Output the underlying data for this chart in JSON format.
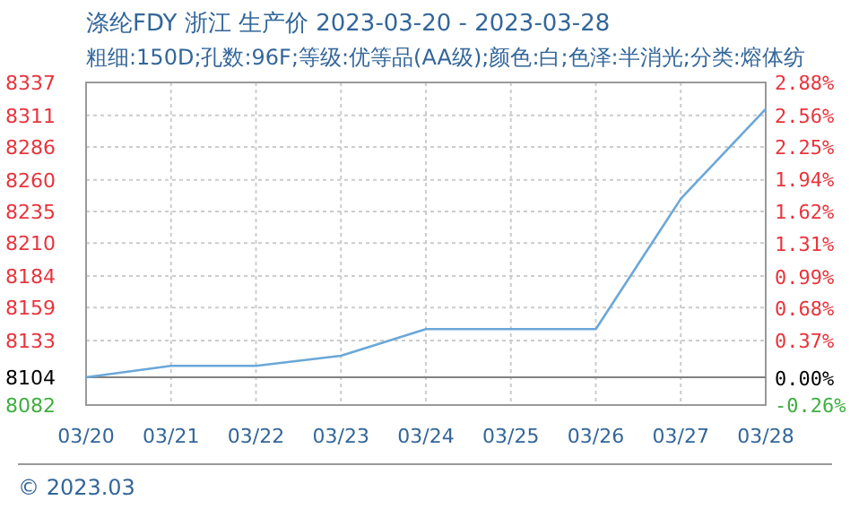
{
  "chart_data": {
    "type": "line",
    "title": "涤纶FDY 浙江 生产价 2023-03-20 - 2023-03-28",
    "subtitle": "粗细:150D;孔数:96F;等级:优等品(AA级);颜色:白;色泽:半消光;分类:熔体纺",
    "categories": [
      "03/20",
      "03/21",
      "03/22",
      "03/23",
      "03/24",
      "03/25",
      "03/26",
      "03/27",
      "03/28"
    ],
    "series": [
      {
        "color": "#6aa7d8",
        "values": [
          8104,
          8113,
          8113,
          8121,
          8142,
          8142,
          8142,
          8245,
          8316
        ]
      }
    ],
    "ylim": [
      8082,
      8337
    ],
    "yticks": [
      8082,
      8104,
      8133,
      8159,
      8184,
      8210,
      8235,
      8260,
      8286,
      8311,
      8337
    ],
    "y2lim": [
      -0.26,
      2.88
    ],
    "y2ticks": [
      {
        "value": -0.26,
        "label": "-0.26%"
      },
      {
        "value": 0,
        "label": "0.00%"
      },
      {
        "value": 0.37,
        "label": "0.37%"
      },
      {
        "value": 0.68,
        "label": "0.68%"
      },
      {
        "value": 0.99,
        "label": "0.99%"
      },
      {
        "value": 1.31,
        "label": "1.31%"
      },
      {
        "value": 1.62,
        "label": "1.62%"
      },
      {
        "value": 1.94,
        "label": "1.94%"
      },
      {
        "value": 2.25,
        "label": "2.25%"
      },
      {
        "value": 2.56,
        "label": "2.56%"
      },
      {
        "value": 2.88,
        "label": "2.88%"
      }
    ],
    "grid": true,
    "ref_lines": [
      {
        "axis": "y",
        "value": 8104,
        "color": "#808080"
      }
    ],
    "annotations": [
      "© 2023.03"
    ]
  }
}
